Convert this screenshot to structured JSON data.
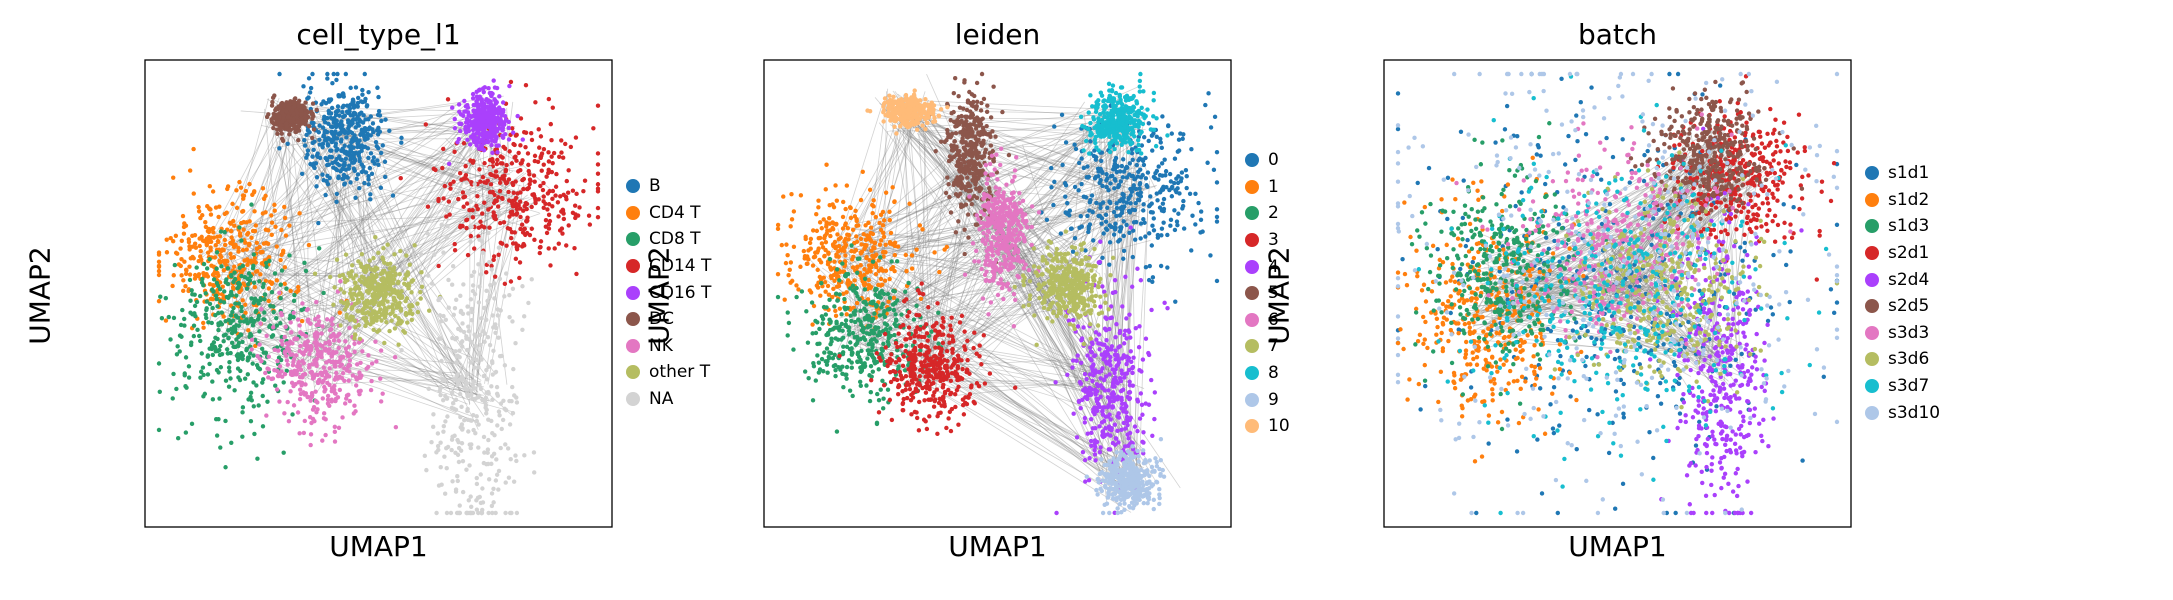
{
  "chart_data": [
    {
      "type": "scatter",
      "title": "cell_type_l1",
      "xlabel": "UMAP1",
      "ylabel": "UMAP2",
      "grid": false,
      "legend_position": "right",
      "overlay": "PAGA graph edges",
      "edge_color": "#7f7f7f",
      "series": [
        {
          "name": "B",
          "color": "#1f77b4",
          "center": [
            0.43,
            0.83
          ],
          "spread": [
            0.045,
            0.06
          ]
        },
        {
          "name": "CD4 T",
          "color": "#ff7f0e",
          "center": [
            0.18,
            0.58
          ],
          "spread": [
            0.07,
            0.07
          ]
        },
        {
          "name": "CD8 T",
          "color": "#279e68",
          "center": [
            0.2,
            0.42
          ],
          "spread": [
            0.07,
            0.09
          ]
        },
        {
          "name": "CD14 T",
          "color": "#d62728",
          "center": [
            0.79,
            0.72
          ],
          "spread": [
            0.08,
            0.08
          ]
        },
        {
          "name": "CD16 T",
          "color": "#aa40fc",
          "center": [
            0.73,
            0.87
          ],
          "spread": [
            0.025,
            0.03
          ]
        },
        {
          "name": "DC",
          "color": "#8c564b",
          "center": [
            0.31,
            0.88
          ],
          "spread": [
            0.02,
            0.015
          ]
        },
        {
          "name": "NK",
          "color": "#e377c2",
          "center": [
            0.37,
            0.35
          ],
          "spread": [
            0.06,
            0.06
          ]
        },
        {
          "name": "other T",
          "color": "#b5bd61",
          "center": [
            0.5,
            0.5
          ],
          "spread": [
            0.04,
            0.04
          ]
        },
        {
          "name": "NA",
          "color": "#d3d3d3",
          "center": [
            0.7,
            0.3
          ],
          "spread": [
            0.05,
            0.18
          ]
        }
      ]
    },
    {
      "type": "scatter",
      "title": "leiden",
      "xlabel": "UMAP1",
      "ylabel": "UMAP2",
      "grid": false,
      "legend_position": "right",
      "overlay": "PAGA graph edges",
      "edge_color": "#7f7f7f",
      "series": [
        {
          "name": "0",
          "color": "#1f77b4",
          "center": [
            0.79,
            0.72
          ],
          "spread": [
            0.08,
            0.08
          ]
        },
        {
          "name": "1",
          "color": "#ff7f0e",
          "center": [
            0.18,
            0.58
          ],
          "spread": [
            0.07,
            0.07
          ]
        },
        {
          "name": "2",
          "color": "#279e68",
          "center": [
            0.21,
            0.41
          ],
          "spread": [
            0.06,
            0.07
          ]
        },
        {
          "name": "3",
          "color": "#d62728",
          "center": [
            0.36,
            0.34
          ],
          "spread": [
            0.05,
            0.06
          ]
        },
        {
          "name": "4",
          "color": "#aa40fc",
          "center": [
            0.74,
            0.3
          ],
          "spread": [
            0.04,
            0.1
          ]
        },
        {
          "name": "5",
          "color": "#8c564b",
          "center": [
            0.44,
            0.8
          ],
          "spread": [
            0.025,
            0.06
          ]
        },
        {
          "name": "6",
          "color": "#e377c2",
          "center": [
            0.51,
            0.63
          ],
          "spread": [
            0.025,
            0.06
          ]
        },
        {
          "name": "7",
          "color": "#b5bd61",
          "center": [
            0.65,
            0.52
          ],
          "spread": [
            0.04,
            0.04
          ]
        },
        {
          "name": "8",
          "color": "#17becf",
          "center": [
            0.76,
            0.87
          ],
          "spread": [
            0.03,
            0.03
          ]
        },
        {
          "name": "9",
          "color": "#aec7e8",
          "center": [
            0.78,
            0.1
          ],
          "spread": [
            0.03,
            0.03
          ]
        },
        {
          "name": "10",
          "color": "#ffbb78",
          "center": [
            0.31,
            0.89
          ],
          "spread": [
            0.025,
            0.015
          ]
        }
      ]
    },
    {
      "type": "scatter",
      "title": "batch",
      "xlabel": "UMAP1",
      "ylabel": "UMAP2",
      "grid": false,
      "legend_position": "right",
      "overlay": "PAGA graph edges",
      "edge_color": "#7f7f7f",
      "series": [
        {
          "name": "s1d1",
          "color": "#1f77b4",
          "center": [
            0.5,
            0.5
          ],
          "spread": [
            0.2,
            0.2
          ]
        },
        {
          "name": "s1d2",
          "color": "#ff7f0e",
          "center": [
            0.22,
            0.45
          ],
          "spread": [
            0.08,
            0.12
          ]
        },
        {
          "name": "s1d3",
          "color": "#279e68",
          "center": [
            0.25,
            0.55
          ],
          "spread": [
            0.08,
            0.1
          ]
        },
        {
          "name": "s2d1",
          "color": "#d62728",
          "center": [
            0.75,
            0.75
          ],
          "spread": [
            0.07,
            0.07
          ]
        },
        {
          "name": "s2d4",
          "color": "#aa40fc",
          "center": [
            0.72,
            0.35
          ],
          "spread": [
            0.05,
            0.15
          ]
        },
        {
          "name": "s2d5",
          "color": "#8c564b",
          "center": [
            0.7,
            0.8
          ],
          "spread": [
            0.06,
            0.06
          ]
        },
        {
          "name": "s3d3",
          "color": "#e377c2",
          "center": [
            0.5,
            0.6
          ],
          "spread": [
            0.1,
            0.1
          ]
        },
        {
          "name": "s3d6",
          "color": "#b5bd61",
          "center": [
            0.6,
            0.5
          ],
          "spread": [
            0.1,
            0.1
          ]
        },
        {
          "name": "s3d7",
          "color": "#17becf",
          "center": [
            0.5,
            0.5
          ],
          "spread": [
            0.15,
            0.15
          ]
        },
        {
          "name": "s3d10",
          "color": "#aec7e8",
          "center": [
            0.5,
            0.55
          ],
          "spread": [
            0.25,
            0.25
          ]
        }
      ]
    }
  ]
}
